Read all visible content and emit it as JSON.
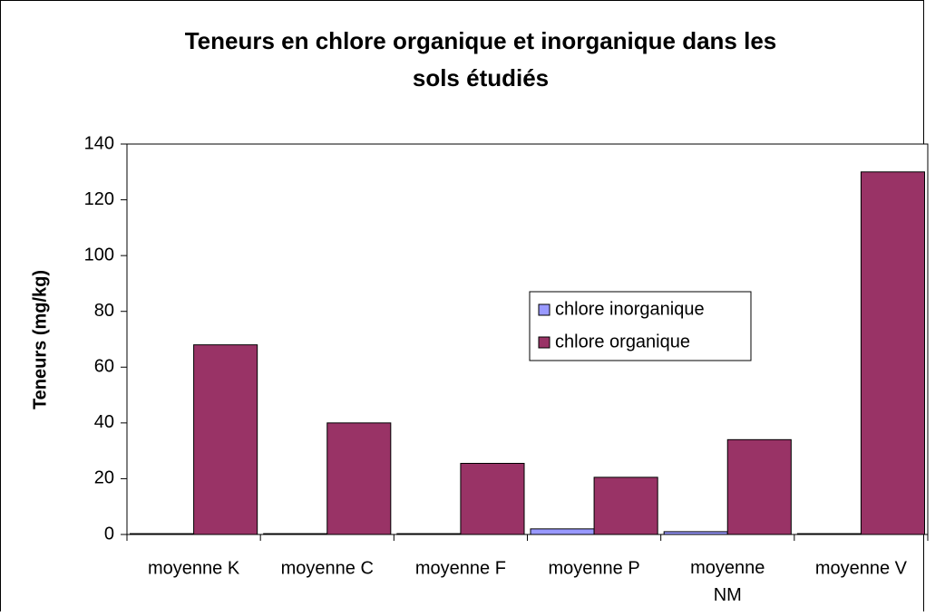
{
  "chart_data": {
    "type": "bar",
    "title": "Teneurs en chlore organique et inorganique dans les sols étudiés",
    "y_label": "Teneurs (mg/kg)",
    "categories": [
      "moyenne K",
      "moyenne C",
      "moyenne F",
      "moyenne P",
      "moyenne NM",
      "moyenne V"
    ],
    "series": [
      {
        "name": "chlore inorganique",
        "color": "#9999ff",
        "values": [
          0.3,
          0.3,
          0.3,
          2,
          1,
          0.3
        ]
      },
      {
        "name": "chlore organique",
        "color": "#993366",
        "values": [
          68,
          40,
          25.5,
          20.5,
          34,
          130
        ]
      }
    ],
    "ylim": [
      0,
      140
    ],
    "yticks": [
      0,
      20,
      40,
      60,
      80,
      100,
      120,
      140
    ],
    "grid": false,
    "legend": "right"
  }
}
